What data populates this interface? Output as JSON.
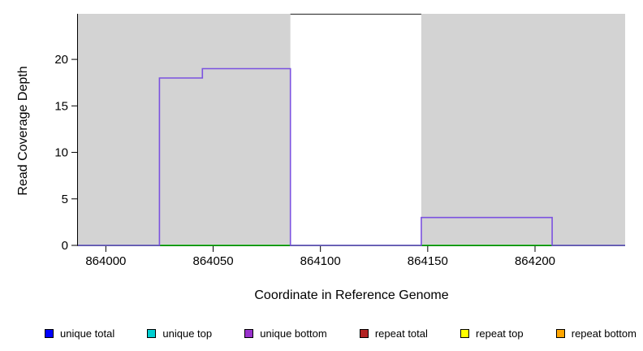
{
  "chart_data": {
    "type": "line",
    "title": "",
    "xlabel": "Coordinate in Reference Genome",
    "ylabel": "Read Coverage Depth",
    "xlim": [
      863987,
      864242
    ],
    "ylim": [
      0,
      24.9
    ],
    "x_ticks": [
      864000,
      864050,
      864100,
      864150,
      864200
    ],
    "y_ticks": [
      0,
      5,
      10,
      15,
      20
    ],
    "grid": false,
    "background": {
      "plot_bg": "#d3d3d3",
      "highlight_region": {
        "x0": 864086,
        "x1": 864147,
        "color": "#ffffff",
        "top_border": "#404040"
      }
    },
    "series": [
      {
        "name": "baseline-green",
        "color": "#00b000",
        "width": 1.5,
        "step_points": [
          [
            863987,
            0
          ],
          [
            864242,
            0
          ]
        ]
      },
      {
        "name": "unique-bottom-coverage",
        "color": "#7b52e0",
        "width": 1.6,
        "step_points": [
          [
            863987,
            0
          ],
          [
            864025,
            0
          ],
          [
            864025,
            18
          ],
          [
            864045,
            18
          ],
          [
            864045,
            19
          ],
          [
            864086,
            19
          ],
          [
            864086,
            0
          ],
          [
            864147,
            0
          ],
          [
            864147,
            3
          ],
          [
            864208,
            3
          ],
          [
            864208,
            0
          ],
          [
            864242,
            0
          ]
        ]
      }
    ],
    "legend_position": "bottom",
    "legend": [
      {
        "label": "unique total",
        "color": "#0000ff"
      },
      {
        "label": "unique top",
        "color": "#00ced1"
      },
      {
        "label": "unique bottom",
        "color": "#9932cc"
      },
      {
        "label": "repeat total",
        "color": "#b22222"
      },
      {
        "label": "repeat top",
        "color": "#ffff00"
      },
      {
        "label": "repeat bottom",
        "color": "#ffa500"
      }
    ]
  }
}
